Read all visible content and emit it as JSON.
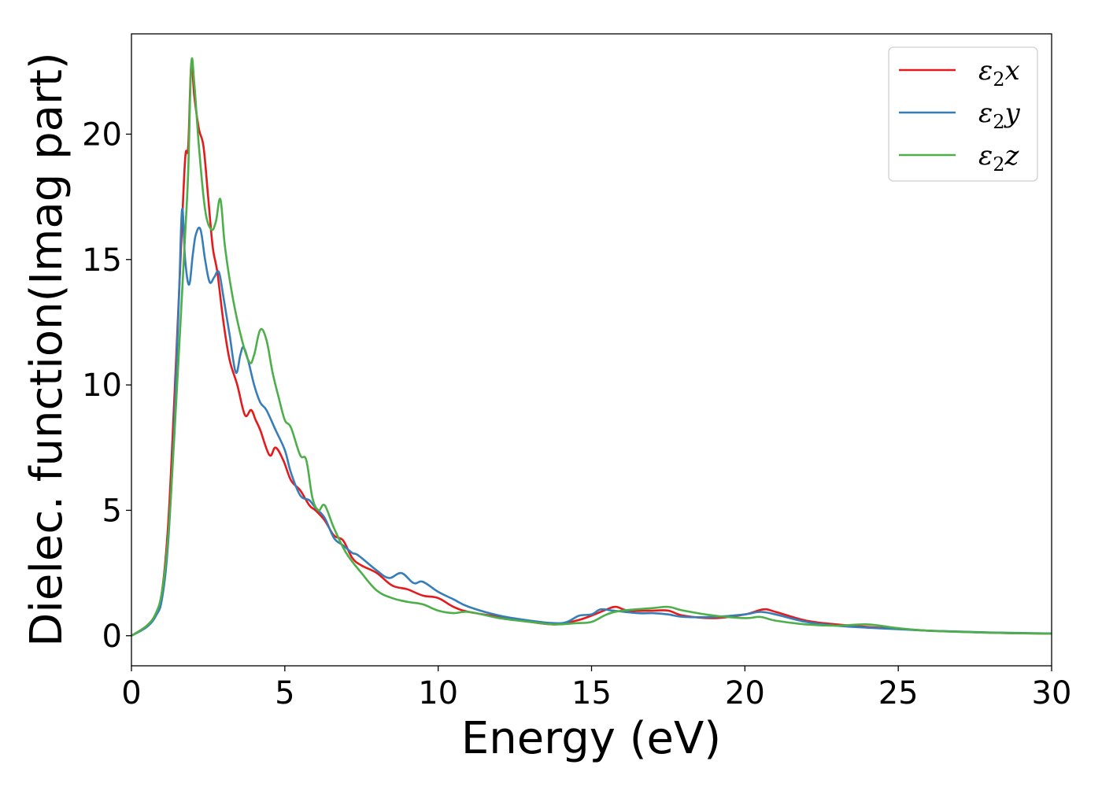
{
  "chart_data": {
    "type": "line",
    "title": "",
    "xlabel": "Energy (eV)",
    "ylabel": "Dielec. function(Imag part)",
    "xlim": [
      0,
      30
    ],
    "ylim": [
      -1.2,
      24
    ],
    "xticks": [
      0,
      5,
      10,
      15,
      20,
      25,
      30
    ],
    "yticks": [
      0,
      5,
      10,
      15,
      20
    ],
    "grid": false,
    "legend_position": "top-right",
    "series": [
      {
        "name": "ε₂x",
        "legend_main": "ε",
        "legend_sub": "2",
        "legend_suffix": "x",
        "color": "#e41a1c",
        "x": [
          0,
          0.5,
          0.8,
          1.0,
          1.2,
          1.4,
          1.6,
          1.75,
          1.85,
          1.95,
          2.05,
          2.2,
          2.35,
          2.5,
          2.65,
          2.8,
          3.0,
          3.2,
          3.45,
          3.7,
          3.9,
          4.05,
          4.2,
          4.5,
          4.7,
          4.95,
          5.2,
          5.5,
          5.8,
          6.0,
          6.3,
          6.6,
          6.9,
          7.2,
          7.5,
          8.0,
          8.5,
          9.0,
          9.5,
          10.0,
          10.5,
          11.0,
          12.0,
          13.0,
          13.8,
          14.5,
          15.0,
          15.5,
          15.8,
          16.2,
          17.0,
          17.5,
          18.0,
          19.0,
          20.0,
          20.6,
          21.0,
          22.0,
          23.0,
          24.0,
          25.0,
          26.0,
          28.0,
          30.0
        ],
        "values": [
          0,
          0.4,
          0.9,
          1.8,
          4.5,
          9.5,
          15.0,
          19.0,
          19.5,
          22.8,
          21.5,
          20.2,
          19.5,
          17.5,
          15.5,
          14.5,
          12.5,
          11.0,
          10.0,
          8.8,
          9.0,
          8.6,
          8.2,
          7.2,
          7.5,
          7.0,
          6.2,
          5.8,
          5.2,
          5.0,
          4.6,
          4.0,
          3.8,
          3.1,
          2.8,
          2.5,
          2.0,
          1.85,
          1.6,
          1.5,
          1.15,
          0.95,
          0.75,
          0.55,
          0.45,
          0.6,
          0.8,
          1.05,
          1.15,
          1.0,
          1.0,
          1.0,
          0.8,
          0.7,
          0.85,
          1.05,
          0.95,
          0.6,
          0.45,
          0.35,
          0.28,
          0.2,
          0.12,
          0.08
        ]
      },
      {
        "name": "ε₂y",
        "legend_main": "ε",
        "legend_sub": "2",
        "legend_suffix": "y",
        "color": "#377eb8",
        "x": [
          0,
          0.5,
          0.8,
          1.0,
          1.2,
          1.4,
          1.55,
          1.65,
          1.75,
          1.88,
          2.0,
          2.1,
          2.25,
          2.4,
          2.55,
          2.7,
          2.85,
          3.0,
          3.2,
          3.4,
          3.55,
          3.65,
          3.8,
          4.0,
          4.2,
          4.4,
          4.7,
          5.0,
          5.2,
          5.5,
          5.8,
          6.0,
          6.3,
          6.6,
          6.9,
          7.2,
          7.4,
          8.0,
          8.4,
          8.8,
          9.2,
          9.5,
          10.0,
          10.5,
          11.0,
          12.0,
          13.0,
          13.8,
          14.2,
          14.6,
          15.0,
          15.3,
          15.7,
          16.5,
          17.0,
          17.5,
          18.0,
          19.0,
          20.0,
          20.5,
          21.0,
          22.0,
          23.0,
          24.0,
          25.0,
          26.0,
          28.0,
          30.0
        ],
        "values": [
          0,
          0.35,
          0.8,
          1.5,
          3.8,
          8.5,
          13.5,
          17.0,
          15.0,
          14.0,
          15.2,
          16.0,
          16.2,
          15.0,
          14.1,
          14.3,
          14.5,
          13.5,
          12.0,
          10.5,
          11.2,
          11.5,
          11.0,
          10.0,
          9.3,
          9.0,
          8.2,
          7.4,
          6.5,
          5.6,
          5.4,
          5.1,
          4.7,
          3.9,
          3.6,
          3.3,
          3.2,
          2.6,
          2.3,
          2.5,
          2.1,
          2.15,
          1.75,
          1.45,
          1.15,
          0.8,
          0.6,
          0.5,
          0.55,
          0.8,
          0.85,
          1.05,
          1.0,
          0.9,
          0.9,
          0.85,
          0.75,
          0.75,
          0.85,
          0.95,
          0.85,
          0.55,
          0.4,
          0.32,
          0.26,
          0.2,
          0.13,
          0.09
        ]
      },
      {
        "name": "ε₂z",
        "legend_main": "ε",
        "legend_sub": "2",
        "legend_suffix": "z",
        "color": "#4daf4a",
        "x": [
          0,
          0.5,
          0.8,
          1.0,
          1.2,
          1.4,
          1.6,
          1.75,
          1.85,
          1.95,
          2.05,
          2.2,
          2.4,
          2.6,
          2.75,
          2.9,
          3.05,
          3.3,
          3.6,
          3.85,
          4.0,
          4.2,
          4.4,
          4.6,
          4.8,
          5.0,
          5.2,
          5.5,
          5.7,
          5.9,
          6.1,
          6.3,
          6.6,
          7.0,
          7.5,
          8.0,
          8.5,
          9.0,
          9.5,
          10.0,
          10.5,
          11.0,
          12.0,
          13.0,
          13.8,
          14.5,
          15.0,
          15.5,
          16.0,
          17.0,
          17.5,
          18.0,
          19.0,
          20.0,
          20.5,
          21.0,
          22.0,
          23.0,
          24.0,
          25.0,
          26.0,
          28.0,
          30.0
        ],
        "values": [
          0,
          0.4,
          0.9,
          1.8,
          4.0,
          8.0,
          12.5,
          16.0,
          18.5,
          22.8,
          22.0,
          19.5,
          17.0,
          16.2,
          16.5,
          17.4,
          15.5,
          13.5,
          11.8,
          10.9,
          11.2,
          12.2,
          11.8,
          10.5,
          9.5,
          8.6,
          8.3,
          7.2,
          7.0,
          5.5,
          5.0,
          5.2,
          4.3,
          3.3,
          2.5,
          1.8,
          1.5,
          1.35,
          1.25,
          1.0,
          0.9,
          0.95,
          0.7,
          0.55,
          0.45,
          0.5,
          0.55,
          0.85,
          1.0,
          1.1,
          1.15,
          1.0,
          0.8,
          0.7,
          0.75,
          0.6,
          0.45,
          0.4,
          0.45,
          0.3,
          0.2,
          0.12,
          0.08
        ]
      }
    ]
  }
}
